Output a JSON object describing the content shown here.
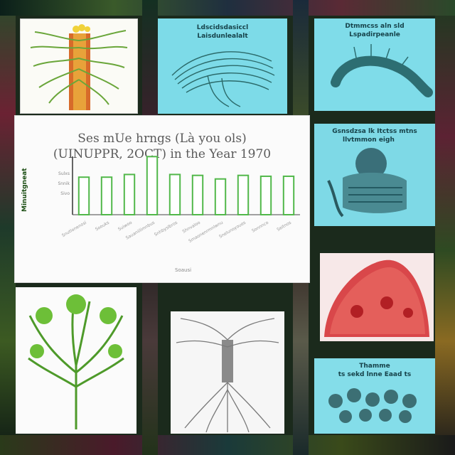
{
  "collage": {
    "background_colors": [
      "#1f3b26",
      "#5b2a35",
      "#3d5f2e",
      "#0e1a14"
    ],
    "panel_cyan": "#79dcea",
    "panel_white": "#fbfbfb",
    "accent_green": "#52b84a",
    "accent_red": "#d8463f"
  },
  "tiles": {
    "top_middle": {
      "caption": "Ldscidsdasiccl",
      "caption2": "Laisdunlealalt"
    },
    "top_right": {
      "caption": "Dtmmcss aln sld",
      "caption2": "Lspadirpeanle"
    },
    "right_middle": {
      "caption": "Gsnsdzsa lk Itctss mtns",
      "caption2": "llvtmmon eigh"
    },
    "bottom_right": {
      "caption": "Thamme",
      "caption2": "ts sekd lnne Eaad ts"
    }
  },
  "chart_data": {
    "type": "bar",
    "title": "Ses mUe hrngs (Là you ols) (UINUPPR, 2OCT) in the Year 1970",
    "title_line1": "Ses mUe hrngs (Là you ols)",
    "title_line2": "(UINUPPR, 2OCT) in the Year 1970",
    "ylabel": "Minuitgneat",
    "xlabel": "Soausi",
    "categories": [
      "Snutlonenosi",
      "Soouks",
      "Suiwoo",
      "Sauaniilimnbus",
      "Snhbyslbros",
      "Shnvaloo",
      "Smaonenrmnlwnu",
      "Snelunoyoues",
      "Sonnnco",
      "Seitnos"
    ],
    "values": [
      42,
      42,
      45,
      65,
      45,
      44,
      40,
      44,
      43,
      43
    ],
    "ylim": [
      0,
      70
    ],
    "ytick_labels": [
      "Sulxs",
      "Snnik",
      "Sivo"
    ]
  }
}
